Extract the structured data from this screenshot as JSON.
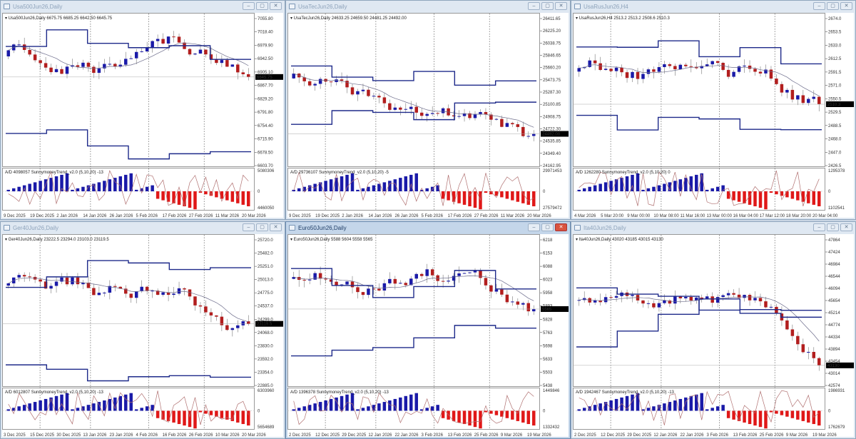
{
  "app": {
    "name": "MetaTrader chart grid",
    "layout": "3x2 tiled chart windows"
  },
  "colors": {
    "bull_candle": "#1a1aa8",
    "bear_candle": "#b21e1e",
    "trend_line": "#1e2a8a",
    "ma_line": "#6b6b8a",
    "ad_line": "#b07070",
    "hist_bull": "#1a1aa8",
    "hist_bear": "#e01818",
    "price_tag_bg": "#000000"
  },
  "windows": [
    {
      "id": "usa500",
      "title": "Usa500Jun26,Daily",
      "ohlc_label": "Usa500Jun26,Daily  6675.75 6685.25 6642.50 6645.75",
      "current_price": "6645.75",
      "price_axis": [
        "7055.80",
        "7018.40",
        "6979.90",
        "6942.50",
        "6905.10",
        "6867.70",
        "6829.20",
        "6791.80",
        "6754.40",
        "6715.90",
        "6678.50",
        "6603.70"
      ],
      "indicator_label": "A/D 4098057  SunnymoneyTrend_v2.0 (5,10,20) -13",
      "indicator_axis": [
        "5080306",
        "0",
        "4460050"
      ],
      "date_axis": [
        "9 Dec 2025",
        "19 Dec 2025",
        "2 Jan 2026",
        "14 Jan 2026",
        "26 Jan 2026",
        "5 Feb 2026",
        "17 Feb 2026",
        "27 Feb 2026",
        "11 Mar 2026",
        "20 Mar 2026"
      ],
      "active": false
    },
    {
      "id": "usatec",
      "title": "UsaTecJun26,Daily",
      "ohlc_label": "UsaTecJun26,Daily  24633.25 24659.50 24481.25 24492.00",
      "current_price": "24492.00",
      "price_axis": [
        "26411.65",
        "26225.20",
        "26038.75",
        "25846.65",
        "25660.20",
        "25473.75",
        "25287.30",
        "25100.85",
        "24908.75",
        "24722.30",
        "24535.85",
        "24349.40",
        "24162.95"
      ],
      "indicator_label": "A/D 29736107  SunnymoneyTrend_v2.0 (5,10,20) -5",
      "indicator_axis": [
        "29971453",
        "0",
        "27579472"
      ],
      "date_axis": [
        "9 Dec 2025",
        "19 Dec 2025",
        "2 Jan 2026",
        "14 Jan 2026",
        "26 Jan 2026",
        "5 Feb 2026",
        "17 Feb 2026",
        "27 Feb 2026",
        "11 Mar 2026",
        "20 Mar 2026"
      ],
      "active": false
    },
    {
      "id": "usarus",
      "title": "UsaRusJun26,H4",
      "ohlc_label": "UsaRusJun26,H4  2513.2 2513.2 2508.6 2510.3",
      "current_price": "2510.3",
      "price_axis": [
        "2674.0",
        "2653.5",
        "2633.0",
        "2612.5",
        "2591.5",
        "2571.0",
        "2550.5",
        "2529.5",
        "2488.5",
        "2468.0",
        "2447.0",
        "2426.5"
      ],
      "indicator_label": "A/D 1262280  SunnymoneyTrend_v2.0 (5,10,20) 0",
      "indicator_axis": [
        "1295378",
        "0",
        "1102541"
      ],
      "date_axis": [
        "4 Mar 2026",
        "5 Mar 20:00",
        "9 Mar 00:00",
        "10 Mar 08:00",
        "11 Mar 16:00",
        "13 Mar 00:00",
        "16 Mar 04:00",
        "17 Mar 12:00",
        "18 Mar 20:00",
        "20 Mar 04:00"
      ],
      "active": false
    },
    {
      "id": "ger40",
      "title": "Ger40Jun26,Daily",
      "ohlc_label": "Ger40Jun26,Daily  23222.5 23294.0 23103.0 23119.5",
      "current_price": "23119.5",
      "price_axis": [
        "25720.0",
        "25482.0",
        "25251.0",
        "25013.0",
        "24775.0",
        "24537.0",
        "24299.0",
        "24068.0",
        "23830.0",
        "23592.0",
        "23354.0",
        "22885.0"
      ],
      "indicator_label": "A/D 6012807  SunnymoneyTrend_v2.0 (5,10,20) -13",
      "indicator_axis": [
        "6303960",
        "0",
        "5654689"
      ],
      "date_axis": [
        "3 Dec 2025",
        "15 Dec 2025",
        "30 Dec 2025",
        "13 Jan 2026",
        "23 Jan 2026",
        "4 Feb 2026",
        "16 Feb 2026",
        "26 Feb 2026",
        "10 Mar 2026",
        "20 Mar 2026"
      ],
      "active": false
    },
    {
      "id": "euro50",
      "title": "Euro50Jun26,Daily",
      "ohlc_label": "Euro50Jun26,Daily  5588 5604 5558 5565",
      "current_price": "5565",
      "price_axis": [
        "6218",
        "6153",
        "6088",
        "6023",
        "5958",
        "5893",
        "5828",
        "5763",
        "5698",
        "5633",
        "5503",
        "5438"
      ],
      "indicator_label": "A/D 1396378  SunnymoneyTrend_v2.0 (5,10,20) -13",
      "indicator_axis": [
        "1449846",
        "0",
        "1332432"
      ],
      "date_axis": [
        "2 Dec 2025",
        "12 Dec 2025",
        "29 Dec 2025",
        "12 Jan 2026",
        "22 Jan 2026",
        "3 Feb 2026",
        "13 Feb 2026",
        "25 Feb 2026",
        "9 Mar 2026",
        "19 Mar 2026"
      ],
      "active": true
    },
    {
      "id": "ita40",
      "title": "Ita40Jun26,Daily",
      "ohlc_label": "Ita40Jun26,Daily  43020 43185 43015 43130",
      "current_price": "43130",
      "price_axis": [
        "47864",
        "47424",
        "46984",
        "46544",
        "46094",
        "45654",
        "45214",
        "44774",
        "44334",
        "43894",
        "43454",
        "43014",
        "42574"
      ],
      "indicator_label": "A/D 1942467  SunnymoneyTrend_v2.0 (5,10,20) -13",
      "indicator_axis": [
        "1986931",
        "0",
        "1762679"
      ],
      "date_axis": [
        "2 Dec 2025",
        "12 Dec 2025",
        "29 Dec 2025",
        "12 Jan 2026",
        "22 Jan 2026",
        "3 Feb 2026",
        "13 Feb 2026",
        "25 Feb 2026",
        "9 Mar 2026",
        "19 Mar 2026"
      ],
      "active": false
    }
  ],
  "chart_data": [
    {
      "type": "candlestick",
      "title": "Usa500Jun26,Daily",
      "ylim": [
        6603.7,
        7055.8
      ],
      "last_close": 6645.75,
      "trend": "downtrend into March, price below MA and lower channel line",
      "indicator": {
        "name": "SunnymoneyTrend_v2.0 (5,10,20)",
        "value": -13,
        "type": "bar"
      },
      "x_ticks": [
        "9 Dec 2025",
        "19 Dec 2025",
        "2 Jan 2026",
        "14 Jan 2026",
        "26 Jan 2026",
        "5 Feb 2026",
        "17 Feb 2026",
        "27 Feb 2026",
        "11 Mar 2026",
        "20 Mar 2026"
      ]
    },
    {
      "type": "candlestick",
      "title": "UsaTecJun26,Daily",
      "ylim": [
        24162.95,
        26411.65
      ],
      "last_close": 24492.0,
      "trend": "range then decline",
      "indicator": {
        "name": "SunnymoneyTrend_v2.0 (5,10,20)",
        "value": -5,
        "type": "bar"
      },
      "x_ticks": [
        "9 Dec 2025",
        "19 Dec 2025",
        "2 Jan 2026",
        "14 Jan 2026",
        "26 Jan 2026",
        "5 Feb 2026",
        "17 Feb 2026",
        "27 Feb 2026",
        "11 Mar 2026",
        "20 Mar 2026"
      ]
    },
    {
      "type": "candlestick",
      "title": "UsaRusJun26,H4",
      "ylim": [
        2426.5,
        2674.0
      ],
      "last_close": 2510.3,
      "trend": "sideways",
      "indicator": {
        "name": "SunnymoneyTrend_v2.0 (5,10,20)",
        "value": 0,
        "type": "bar"
      },
      "x_ticks": [
        "4 Mar 2026",
        "5 Mar 20:00",
        "9 Mar 00:00",
        "10 Mar 08:00",
        "11 Mar 16:00",
        "13 Mar 00:00",
        "16 Mar 04:00",
        "17 Mar 12:00",
        "18 Mar 20:00",
        "20 Mar 04:00"
      ]
    },
    {
      "type": "candlestick",
      "title": "Ger40Jun26,Daily",
      "ylim": [
        22885.0,
        25720.0
      ],
      "last_close": 23119.5,
      "trend": "sharp decline in March",
      "indicator": {
        "name": "SunnymoneyTrend_v2.0 (5,10,20)",
        "value": -13,
        "type": "bar"
      },
      "x_ticks": [
        "3 Dec 2025",
        "15 Dec 2025",
        "30 Dec 2025",
        "13 Jan 2026",
        "23 Jan 2026",
        "4 Feb 2026",
        "16 Feb 2026",
        "26 Feb 2026",
        "10 Mar 2026",
        "20 Mar 2026"
      ]
    },
    {
      "type": "candlestick",
      "title": "Euro50Jun26,Daily",
      "ylim": [
        5438,
        6218
      ],
      "last_close": 5565,
      "trend": "uptrend to late Feb then sharp decline",
      "indicator": {
        "name": "SunnymoneyTrend_v2.0 (5,10,20)",
        "value": -13,
        "type": "bar"
      },
      "x_ticks": [
        "2 Dec 2025",
        "12 Dec 2025",
        "29 Dec 2025",
        "12 Jan 2026",
        "22 Jan 2026",
        "3 Feb 2026",
        "13 Feb 2026",
        "25 Feb 2026",
        "9 Mar 2026",
        "19 Mar 2026"
      ]
    },
    {
      "type": "candlestick",
      "title": "Ita40Jun26,Daily",
      "ylim": [
        42574,
        47864
      ],
      "last_close": 43130,
      "trend": "uptrend to late Feb then sharp decline",
      "indicator": {
        "name": "SunnymoneyTrend_v2.0 (5,10,20)",
        "value": -13,
        "type": "bar"
      },
      "x_ticks": [
        "2 Dec 2025",
        "12 Dec 2025",
        "29 Dec 2025",
        "12 Jan 2026",
        "22 Jan 2026",
        "3 Feb 2026",
        "13 Feb 2026",
        "25 Feb 2026",
        "9 Mar 2026",
        "19 Mar 2026"
      ]
    }
  ]
}
